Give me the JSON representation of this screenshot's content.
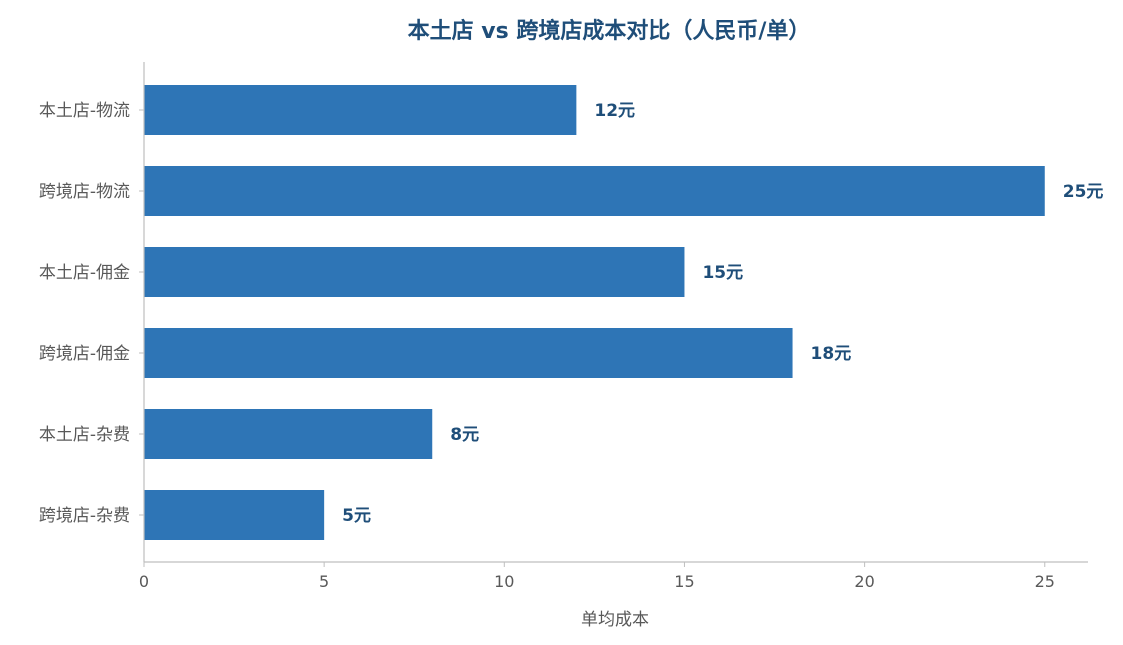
{
  "chart_data": {
    "type": "bar",
    "orientation": "horizontal",
    "title": "本土店 vs 跨境店成本对比（人民币/单）",
    "xlabel": "单均成本",
    "ylabel": "",
    "categories": [
      "本土店-物流",
      "跨境店-物流",
      "本土店-佣金",
      "跨境店-佣金",
      "本土店-杂费",
      "跨境店-杂费"
    ],
    "values": [
      12,
      25,
      15,
      18,
      8,
      5
    ],
    "value_labels": [
      "12元",
      "25元",
      "15元",
      "18元",
      "8元",
      "5元"
    ],
    "xlim": [
      0,
      26.2
    ],
    "xticks": [
      0,
      5,
      10,
      15,
      20,
      25
    ],
    "xtick_labels": [
      "0",
      "5",
      "10",
      "15",
      "20",
      "25"
    ],
    "grid": false,
    "legend": "none",
    "colors": {
      "bar": "#2e75b6",
      "title": "#1f4e79",
      "value_label": "#1f4e79",
      "axis": "#bfbfbf",
      "text": "#595959"
    }
  }
}
